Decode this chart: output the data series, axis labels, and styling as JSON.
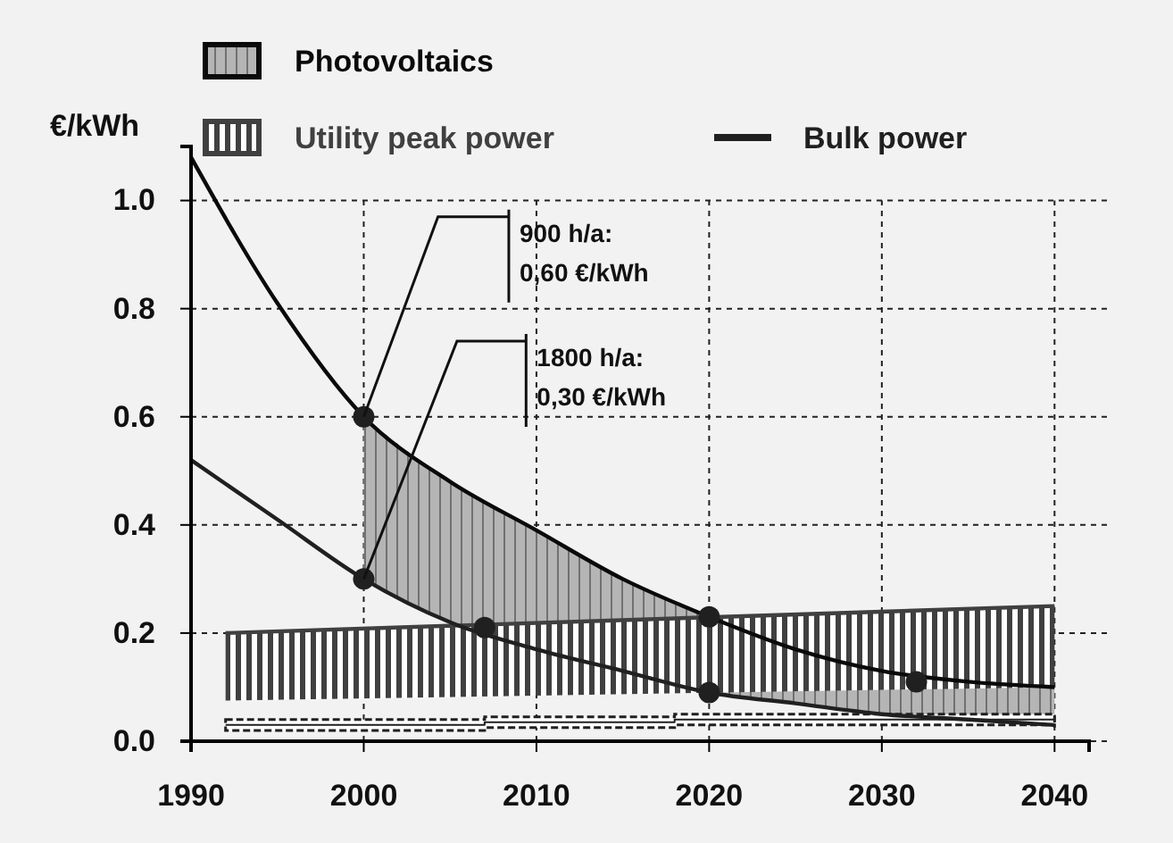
{
  "chart_data": {
    "type": "line",
    "ylabel": "€/kWh",
    "xlim": [
      1990,
      2042
    ],
    "ylim": [
      0,
      1.1
    ],
    "xticks": [
      1990,
      2000,
      2010,
      2020,
      2030,
      2040
    ],
    "yticks": [
      {
        "value": 0,
        "label": "0.0"
      },
      {
        "value": 0.2,
        "label": "0.2"
      },
      {
        "value": 0.4,
        "label": "0.4"
      },
      {
        "value": 0.6,
        "label": "0.6"
      },
      {
        "value": 0.8,
        "label": "0.8"
      },
      {
        "value": 1,
        "label": "1.0"
      }
    ],
    "grid": true,
    "legend": "top",
    "line_style": "solid",
    "series": [
      {
        "name": "Photovoltaics",
        "color": "#0a0a0a",
        "x": [
          1990,
          1995,
          2000,
          2005,
          2010,
          2015,
          2020,
          2025,
          2030,
          2035,
          2040
        ],
        "values": [
          1.08,
          0.81,
          0.6,
          0.48,
          0.39,
          0.3,
          0.23,
          0.17,
          0.13,
          0.11,
          0.1
        ],
        "lower": [
          null,
          null,
          0.3,
          0.22,
          0.17,
          0.13,
          0.09,
          0.07,
          0.05,
          0.04,
          0.03
        ],
        "upper": [
          null,
          null,
          0.6,
          0.48,
          0.39,
          0.3,
          0.23,
          0.17,
          0.13,
          0.11,
          0.1
        ]
      },
      {
        "name": "Utility peak power",
        "color": "#404040",
        "x": [
          1992,
          2040
        ],
        "values": [
          0.2,
          0.25
        ],
        "lower": [
          0.075,
          0.1
        ],
        "upper": [
          0.2,
          0.25
        ]
      },
      {
        "name": "Bulk power",
        "color": "#202020",
        "x": [
          1992,
          2007,
          2018,
          2040
        ],
        "values": [
          0.03,
          0.035,
          0.04,
          0.035
        ],
        "lower": [
          0.02,
          0.025,
          0.03,
          0.025
        ],
        "upper": [
          0.04,
          0.045,
          0.05,
          0.045
        ]
      },
      {
        "color": "#202020",
        "x": [
          1990,
          1995,
          2000,
          2005,
          2010,
          2015,
          2020,
          2025,
          2030,
          2035,
          2040
        ],
        "values": [
          0.52,
          0.41,
          0.3,
          0.22,
          0.17,
          0.13,
          0.09,
          0.07,
          0.05,
          0.04,
          0.03
        ]
      },
      {
        "type": "scatter",
        "color": "#202020",
        "x": [
          2000,
          2000,
          2007,
          2020,
          2020,
          2032
        ],
        "values": [
          0.6,
          0.3,
          0.21,
          0.23,
          0.09,
          0.11
        ]
      }
    ],
    "annotations": [
      {
        "text": "900 h/a:\n0,60 €/kWh",
        "x": 2000,
        "y": 0.6
      },
      {
        "text": "1800 h/a:\n0,30 €/kWh",
        "x": 2000,
        "y": 0.3
      }
    ]
  }
}
